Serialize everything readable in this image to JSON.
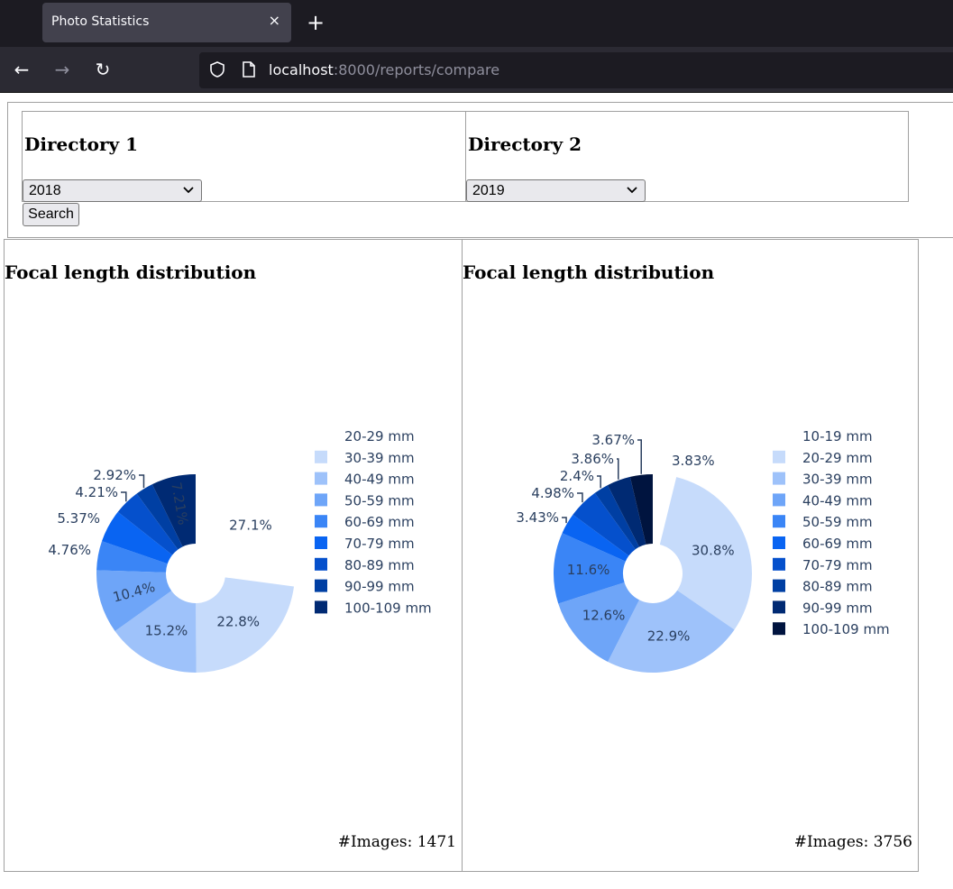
{
  "browser": {
    "tab_title": "Photo Statistics",
    "tab_close": "×",
    "new_tab": "+",
    "back": "←",
    "forward": "→",
    "reload": "↻",
    "url_host": "localhost",
    "url_rest": ":8000/reports/compare"
  },
  "form": {
    "dir1_title": "Directory 1",
    "dir1_value": "2018",
    "dir2_title": "Directory 2",
    "dir2_value": "2019",
    "search_label": "Search"
  },
  "panels": [
    {
      "title": "Focal length distribution",
      "images_label": "#Images: 1471"
    },
    {
      "title": "Focal length distribution",
      "images_label": "#Images: 3756"
    }
  ],
  "colors": {
    "slice": [
      "#ffffff",
      "#c6dbfb",
      "#9ec2fa",
      "#6ea5f8",
      "#3a85f6",
      "#0964f2",
      "#0550cc",
      "#003fa3",
      "#002a73",
      "#00143f"
    ]
  },
  "chart_data": [
    {
      "type": "pie",
      "hole": true,
      "categories": [
        "20-29 mm",
        "30-39 mm",
        "40-49 mm",
        "50-59 mm",
        "60-69 mm",
        "70-79 mm",
        "80-89 mm",
        "90-99 mm",
        "100-109 mm"
      ],
      "values": [
        27.1,
        22.8,
        15.2,
        10.4,
        4.76,
        5.37,
        4.21,
        2.92,
        7.21
      ],
      "labels": [
        "27.1%",
        "22.8%",
        "15.2%",
        "10.4%",
        "4.76%",
        "5.37%",
        "4.21%",
        "2.92%",
        "7.21%"
      ],
      "color_index": [
        0,
        1,
        2,
        3,
        4,
        5,
        6,
        7,
        8
      ],
      "legend": "right"
    },
    {
      "type": "pie",
      "hole": true,
      "categories": [
        "10-19 mm",
        "20-29 mm",
        "30-39 mm",
        "40-49 mm",
        "50-59 mm",
        "60-69 mm",
        "70-79 mm",
        "80-89 mm",
        "90-99 mm",
        "100-109 mm"
      ],
      "values": [
        3.83,
        30.8,
        22.9,
        12.6,
        11.6,
        3.43,
        4.98,
        2.4,
        3.86,
        3.67
      ],
      "labels": [
        "3.83%",
        "30.8%",
        "22.9%",
        "12.6%",
        "11.6%",
        "3.43%",
        "4.98%",
        "2.4%",
        "3.86%",
        "3.67%"
      ],
      "color_index": [
        0,
        1,
        2,
        3,
        4,
        5,
        6,
        7,
        8,
        9
      ],
      "legend": "right"
    }
  ]
}
